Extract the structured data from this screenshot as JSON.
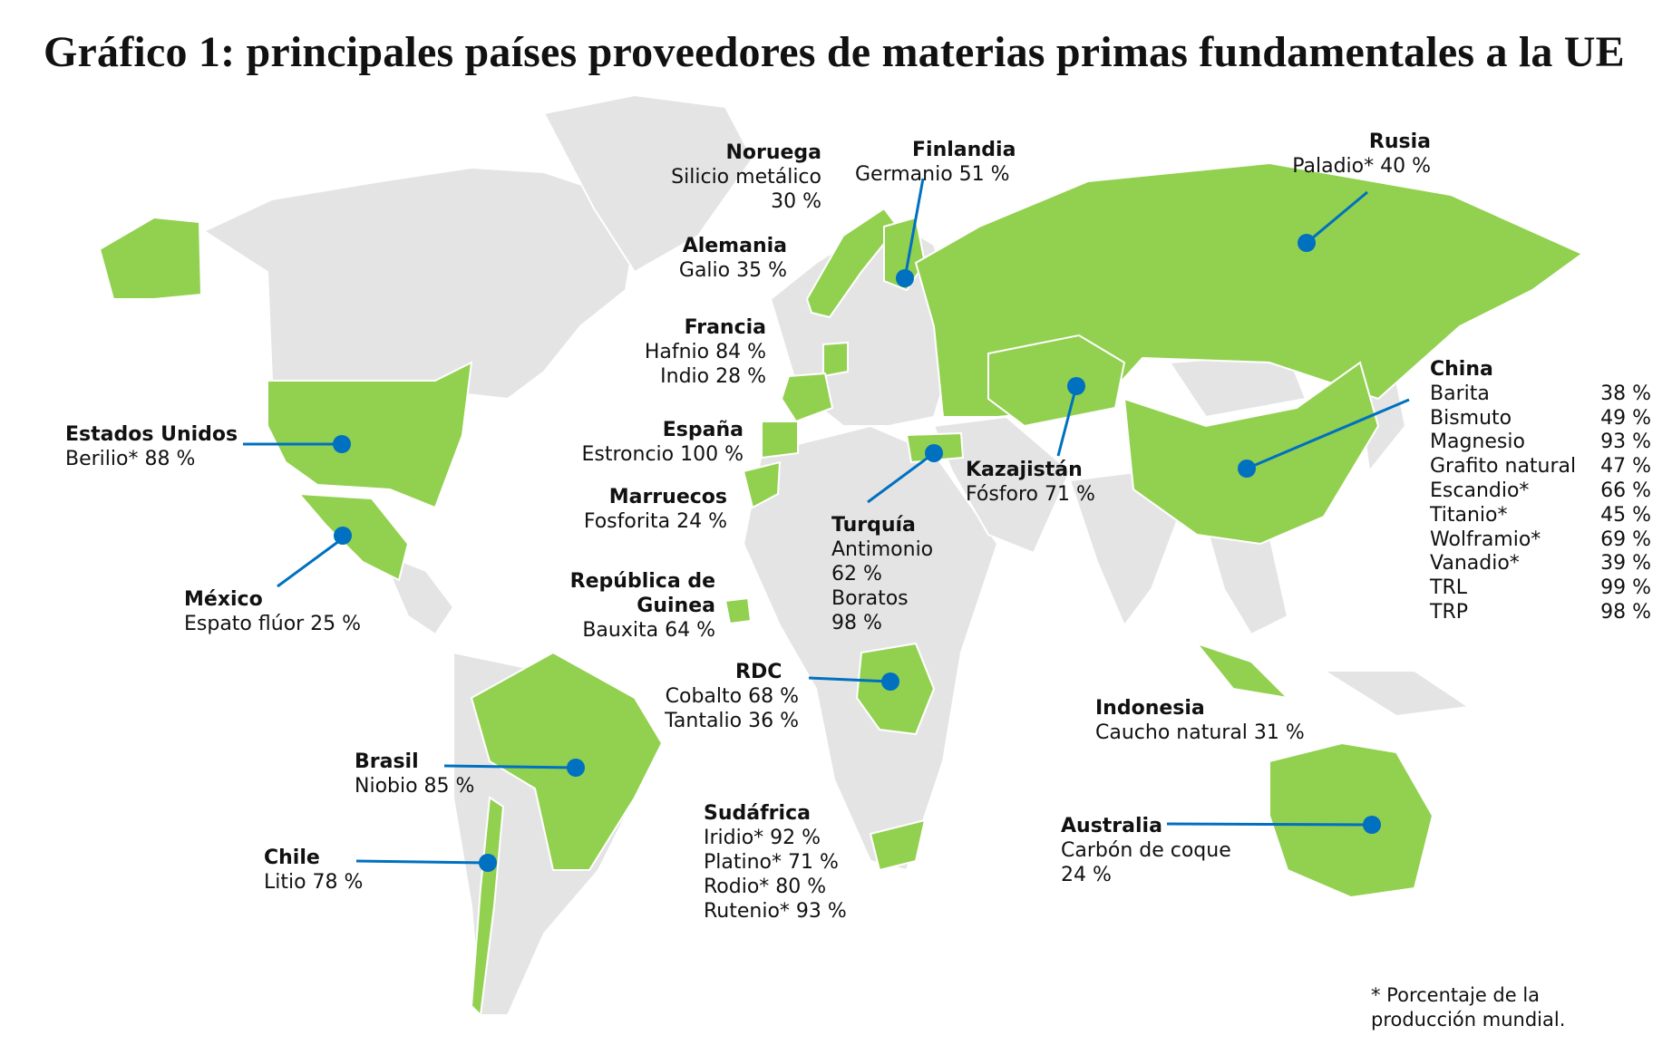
{
  "title": "Gráfico 1: principales países proveedores de materias primas fundamentales a la UE",
  "colors": {
    "highlight": "#92D050",
    "land": "#E4E4E4",
    "marker": "#0070C0",
    "border": "#FFFFFF"
  },
  "labels": {
    "noruega": {
      "name": "Noruega",
      "lines": [
        "Silicio metálico",
        "30 %"
      ]
    },
    "finlandia": {
      "name": "Finlandia",
      "lines": [
        "Germanio 51 %"
      ]
    },
    "rusia": {
      "name": "Rusia",
      "lines": [
        "Paladio* 40 %"
      ]
    },
    "alemania": {
      "name": "Alemania",
      "lines": [
        "Galio 35 %"
      ]
    },
    "francia": {
      "name": "Francia",
      "lines": [
        "Hafnio 84 %",
        "Indio 28 %"
      ]
    },
    "espana": {
      "name": "España",
      "lines": [
        "Estroncio 100 %"
      ]
    },
    "marruecos": {
      "name": "Marruecos",
      "lines": [
        "Fosforita 24 %"
      ]
    },
    "guinea": {
      "name": "República de Guinea",
      "lines": [
        "Bauxita 64 %"
      ]
    },
    "eeuu": {
      "name": "Estados Unidos",
      "lines": [
        "Berilio* 88 %"
      ]
    },
    "mexico": {
      "name": "México",
      "lines": [
        "Espato flúor 25 %"
      ]
    },
    "turquia": {
      "name": "Turquía",
      "lines": [
        "Antimonio",
        "62 %",
        "Boratos",
        "98 %"
      ]
    },
    "kazajistan": {
      "name": "Kazajistán",
      "lines": [
        "Fósforo 71 %"
      ]
    },
    "rdc": {
      "name": "RDC",
      "lines": [
        "Cobalto 68 %",
        "Tantalio 36 %"
      ]
    },
    "brasil": {
      "name": "Brasil",
      "lines": [
        "Niobio 85 %"
      ]
    },
    "chile": {
      "name": "Chile",
      "lines": [
        "Litio 78 %"
      ]
    },
    "sudafrica": {
      "name": "Sudáfrica",
      "lines": [
        "Iridio* 92 %",
        "Platino* 71 %",
        "Rodio* 80 %",
        "Rutenio* 93 %"
      ]
    },
    "indonesia": {
      "name": "Indonesia",
      "lines": [
        "Caucho natural 31 %"
      ]
    },
    "australia": {
      "name": "Australia",
      "lines": [
        "Carbón de coque",
        "24 %"
      ]
    }
  },
  "china": {
    "name": "China",
    "rows": [
      [
        "Barita",
        "38 %"
      ],
      [
        "Bismuto",
        "49 %"
      ],
      [
        "Magnesio",
        "93 %"
      ],
      [
        "Grafito natural",
        "47 %"
      ],
      [
        "Escandio*",
        "66 %"
      ],
      [
        "Titanio*",
        "45 %"
      ],
      [
        "Wolframio*",
        "69 %"
      ],
      [
        "Vanadio*",
        "39 %"
      ],
      [
        "TRL",
        "99 %"
      ],
      [
        "TRP",
        "98 %"
      ]
    ]
  },
  "footnote": [
    "* Porcentaje de la",
    "producción mundial."
  ]
}
